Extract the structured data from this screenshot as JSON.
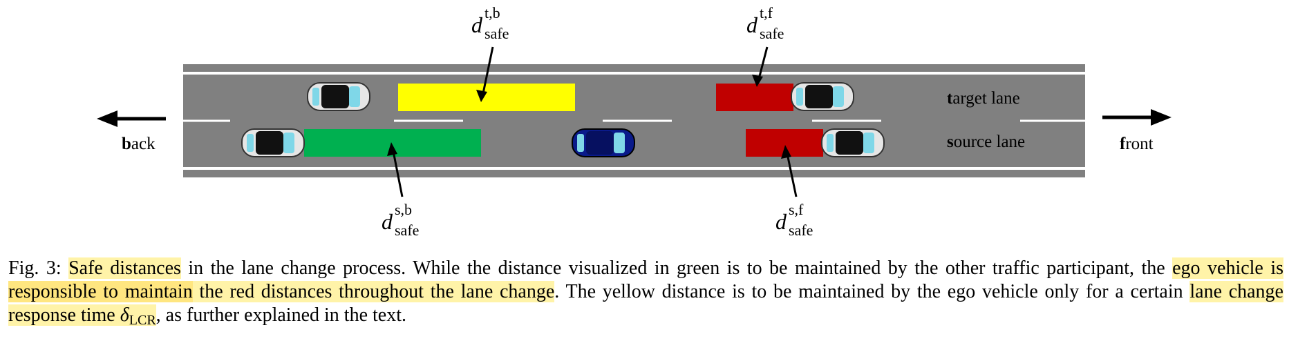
{
  "figure": {
    "labels": {
      "target_lane": {
        "lead": "t",
        "rest": "arget lane"
      },
      "source_lane": {
        "lead": "s",
        "rest": "ource lane"
      },
      "back": {
        "lead": "b",
        "rest": "ack"
      },
      "front": {
        "lead": "f",
        "rest": "ront"
      }
    },
    "distance_labels": {
      "tb": {
        "symbol": "d",
        "sup": "t,b",
        "sub": "safe"
      },
      "tf": {
        "symbol": "d",
        "sup": "t,f",
        "sub": "safe"
      },
      "sb": {
        "symbol": "d",
        "sup": "s,b",
        "sub": "safe"
      },
      "sf": {
        "symbol": "d",
        "sup": "s,f",
        "sub": "safe"
      }
    },
    "colors": {
      "road": "#808080",
      "road_edge": "#ffffff",
      "target_back_zone": "#ffff00",
      "source_back_zone": "#00b050",
      "front_zones": "#c00000",
      "ego_vehicle": "#0a1a8a",
      "other_vehicles": "#e6e6e6"
    }
  },
  "caption": {
    "prefix": "Fig. 3: ",
    "hl1": "Safe distances",
    "t1": " in the lane change process. While the distance visualized in green is to be maintained by the other traffic participant, the ",
    "hl2": "ego vehicle is ",
    "hl3": "responsible to maintain",
    "hl4": " the red distances throughout the lane change",
    "t2": ". The yellow distance is to be maintained by the ego vehicle only for a certain ",
    "hl5": "lane change response time ",
    "delta": "δ",
    "delta_sub": "LCR",
    "t3": ", as further explained in the text."
  }
}
